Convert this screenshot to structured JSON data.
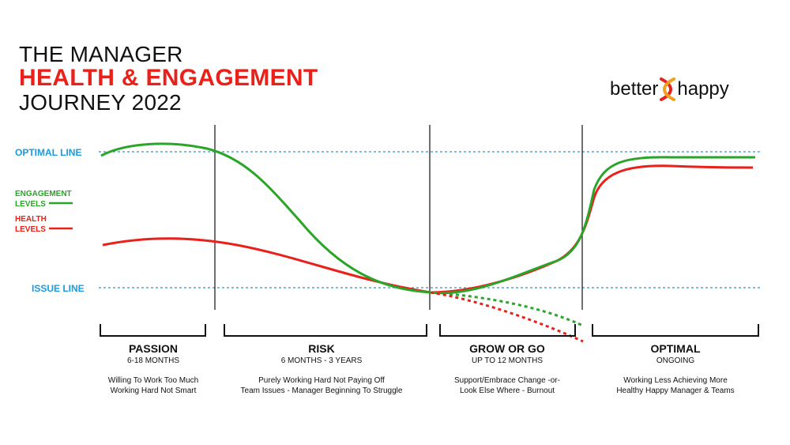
{
  "title": {
    "line1": "THE MANAGER",
    "line2": "HEALTH & ENGAGEMENT",
    "line3": "JOURNEY 2022"
  },
  "logo": {
    "left_text": "better",
    "right_text": "happy",
    "icon": "dna-helix-icon"
  },
  "labels": {
    "optimal_line": "OPTIMAL LINE",
    "issue_line": "ISSUE LINE",
    "engagement_line1": "ENGAGEMENT",
    "engagement_line2": "LEVELS",
    "health_line1": "HEALTH",
    "health_line2": "LEVELS"
  },
  "phases": [
    {
      "name": "PASSION",
      "duration": "6-18 MONTHS",
      "desc1": "Willing To Work Too Much",
      "desc2": "Working Hard Not Smart"
    },
    {
      "name": "RISK",
      "duration": "6 MONTHS - 3 YEARS",
      "desc1": "Purely Working Hard Not Paying Off",
      "desc2": "Team Issues - Manager Beginning To Struggle"
    },
    {
      "name": "GROW OR GO",
      "duration": "UP TO 12 MONTHS",
      "desc1": "Support/Embrace Change -or-",
      "desc2": "Look Else Where - Burnout"
    },
    {
      "name": "OPTIMAL",
      "duration": "ONGOING",
      "desc1": "Working Less Achieving More",
      "desc2": "Healthy Happy Manager & Teams"
    }
  ],
  "colors": {
    "engagement": "#2aa52a",
    "health": "#e8211a",
    "reference_lines": "#1a9be0",
    "title_accent": "#e8211a"
  }
}
